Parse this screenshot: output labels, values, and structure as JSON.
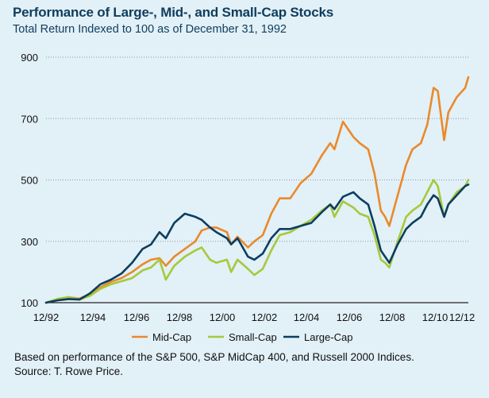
{
  "title": "Performance of Large-, Mid-, and Small-Cap Stocks",
  "subtitle": "Total Return Indexed to 100 as of December 31, 1992",
  "footnote": {
    "line1": "Based on performance of the S&P 500, S&P MidCap 400, and Russell 2000 Indices.",
    "line2": "Source: T. Rowe Price."
  },
  "colors": {
    "mid_cap": "#e98a2b",
    "small_cap": "#a6c93a",
    "large_cap": "#0c3e5f",
    "grid": "#8a9aa3",
    "background": "#e2f0f7"
  },
  "chart_data": {
    "type": "line",
    "title": "Performance of Large-, Mid-, and Small-Cap Stocks",
    "subtitle": "Total Return Indexed to 100 as of December 31, 1992",
    "x_ticks": [
      "12/92",
      "12/94",
      "12/96",
      "12/98",
      "12/00",
      "12/02",
      "12/04",
      "12/06",
      "12/08",
      "12/10",
      "12/12"
    ],
    "y_ticks": [
      100,
      300,
      500,
      700,
      900
    ],
    "xlim": [
      1992.92,
      2012.95
    ],
    "ylim": [
      100,
      900
    ],
    "grid": "horizontal dotted",
    "legend_position": "bottom",
    "series": [
      {
        "name": "Mid-Cap",
        "color": "#e98a2b",
        "x": [
          1992.92,
          1993.5,
          1994.0,
          1994.5,
          1995.0,
          1995.5,
          1996.0,
          1996.5,
          1997.0,
          1997.5,
          1997.9,
          1998.3,
          1998.6,
          1999.0,
          1999.5,
          2000.0,
          2000.3,
          2000.7,
          2001.0,
          2001.5,
          2001.7,
          2002.0,
          2002.5,
          2002.8,
          2003.2,
          2003.6,
          2004.0,
          2004.5,
          2005.0,
          2005.5,
          2006.0,
          2006.4,
          2006.6,
          2007.0,
          2007.5,
          2007.8,
          2008.2,
          2008.5,
          2008.8,
          2009.0,
          2009.2,
          2009.6,
          2010.0,
          2010.3,
          2010.7,
          2011.0,
          2011.3,
          2011.5,
          2011.8,
          2012.0,
          2012.4,
          2012.8,
          2012.95
        ],
        "y": [
          100,
          112,
          118,
          113,
          128,
          150,
          168,
          180,
          200,
          225,
          240,
          245,
          220,
          250,
          275,
          300,
          335,
          345,
          345,
          330,
          290,
          315,
          280,
          300,
          320,
          390,
          440,
          440,
          490,
          520,
          580,
          620,
          600,
          690,
          640,
          620,
          600,
          520,
          400,
          380,
          350,
          450,
          550,
          600,
          620,
          680,
          800,
          790,
          630,
          720,
          770,
          800,
          835
        ]
      },
      {
        "name": "Small-Cap",
        "color": "#a6c93a",
        "x": [
          1992.92,
          1993.5,
          1994.0,
          1994.5,
          1995.0,
          1995.5,
          1996.0,
          1996.5,
          1997.0,
          1997.5,
          1997.9,
          1998.3,
          1998.6,
          1999.0,
          1999.5,
          2000.0,
          2000.3,
          2000.7,
          2001.0,
          2001.5,
          2001.7,
          2002.0,
          2002.5,
          2002.8,
          2003.2,
          2003.6,
          2004.0,
          2004.5,
          2005.0,
          2005.5,
          2006.0,
          2006.4,
          2006.6,
          2007.0,
          2007.5,
          2007.8,
          2008.2,
          2008.5,
          2008.8,
          2009.0,
          2009.2,
          2009.6,
          2010.0,
          2010.3,
          2010.7,
          2011.0,
          2011.3,
          2011.5,
          2011.8,
          2012.0,
          2012.4,
          2012.8,
          2012.95
        ],
        "y": [
          100,
          113,
          118,
          110,
          122,
          145,
          160,
          170,
          180,
          205,
          215,
          240,
          175,
          220,
          250,
          270,
          280,
          240,
          230,
          240,
          200,
          240,
          210,
          190,
          210,
          270,
          320,
          330,
          350,
          370,
          400,
          420,
          380,
          430,
          410,
          390,
          380,
          320,
          240,
          230,
          215,
          300,
          380,
          400,
          420,
          460,
          500,
          480,
          380,
          420,
          460,
          480,
          500
        ]
      },
      {
        "name": "Large-Cap",
        "color": "#0c3e5f",
        "x": [
          1992.92,
          1993.5,
          1994.0,
          1994.5,
          1995.0,
          1995.5,
          1996.0,
          1996.5,
          1997.0,
          1997.5,
          1997.9,
          1998.3,
          1998.6,
          1999.0,
          1999.5,
          2000.0,
          2000.3,
          2000.7,
          2001.0,
          2001.5,
          2001.7,
          2002.0,
          2002.5,
          2002.8,
          2003.2,
          2003.6,
          2004.0,
          2004.5,
          2005.0,
          2005.5,
          2006.0,
          2006.4,
          2006.6,
          2007.0,
          2007.5,
          2007.8,
          2008.2,
          2008.5,
          2008.8,
          2009.0,
          2009.2,
          2009.6,
          2010.0,
          2010.3,
          2010.7,
          2011.0,
          2011.3,
          2011.5,
          2011.8,
          2012.0,
          2012.4,
          2012.8,
          2012.95
        ],
        "y": [
          100,
          108,
          112,
          110,
          130,
          160,
          175,
          195,
          230,
          275,
          290,
          330,
          310,
          360,
          390,
          380,
          370,
          345,
          330,
          310,
          290,
          310,
          250,
          240,
          260,
          310,
          340,
          340,
          350,
          360,
          395,
          420,
          405,
          445,
          460,
          440,
          420,
          350,
          270,
          250,
          230,
          290,
          340,
          360,
          380,
          420,
          450,
          440,
          380,
          420,
          450,
          480,
          485
        ]
      }
    ]
  }
}
